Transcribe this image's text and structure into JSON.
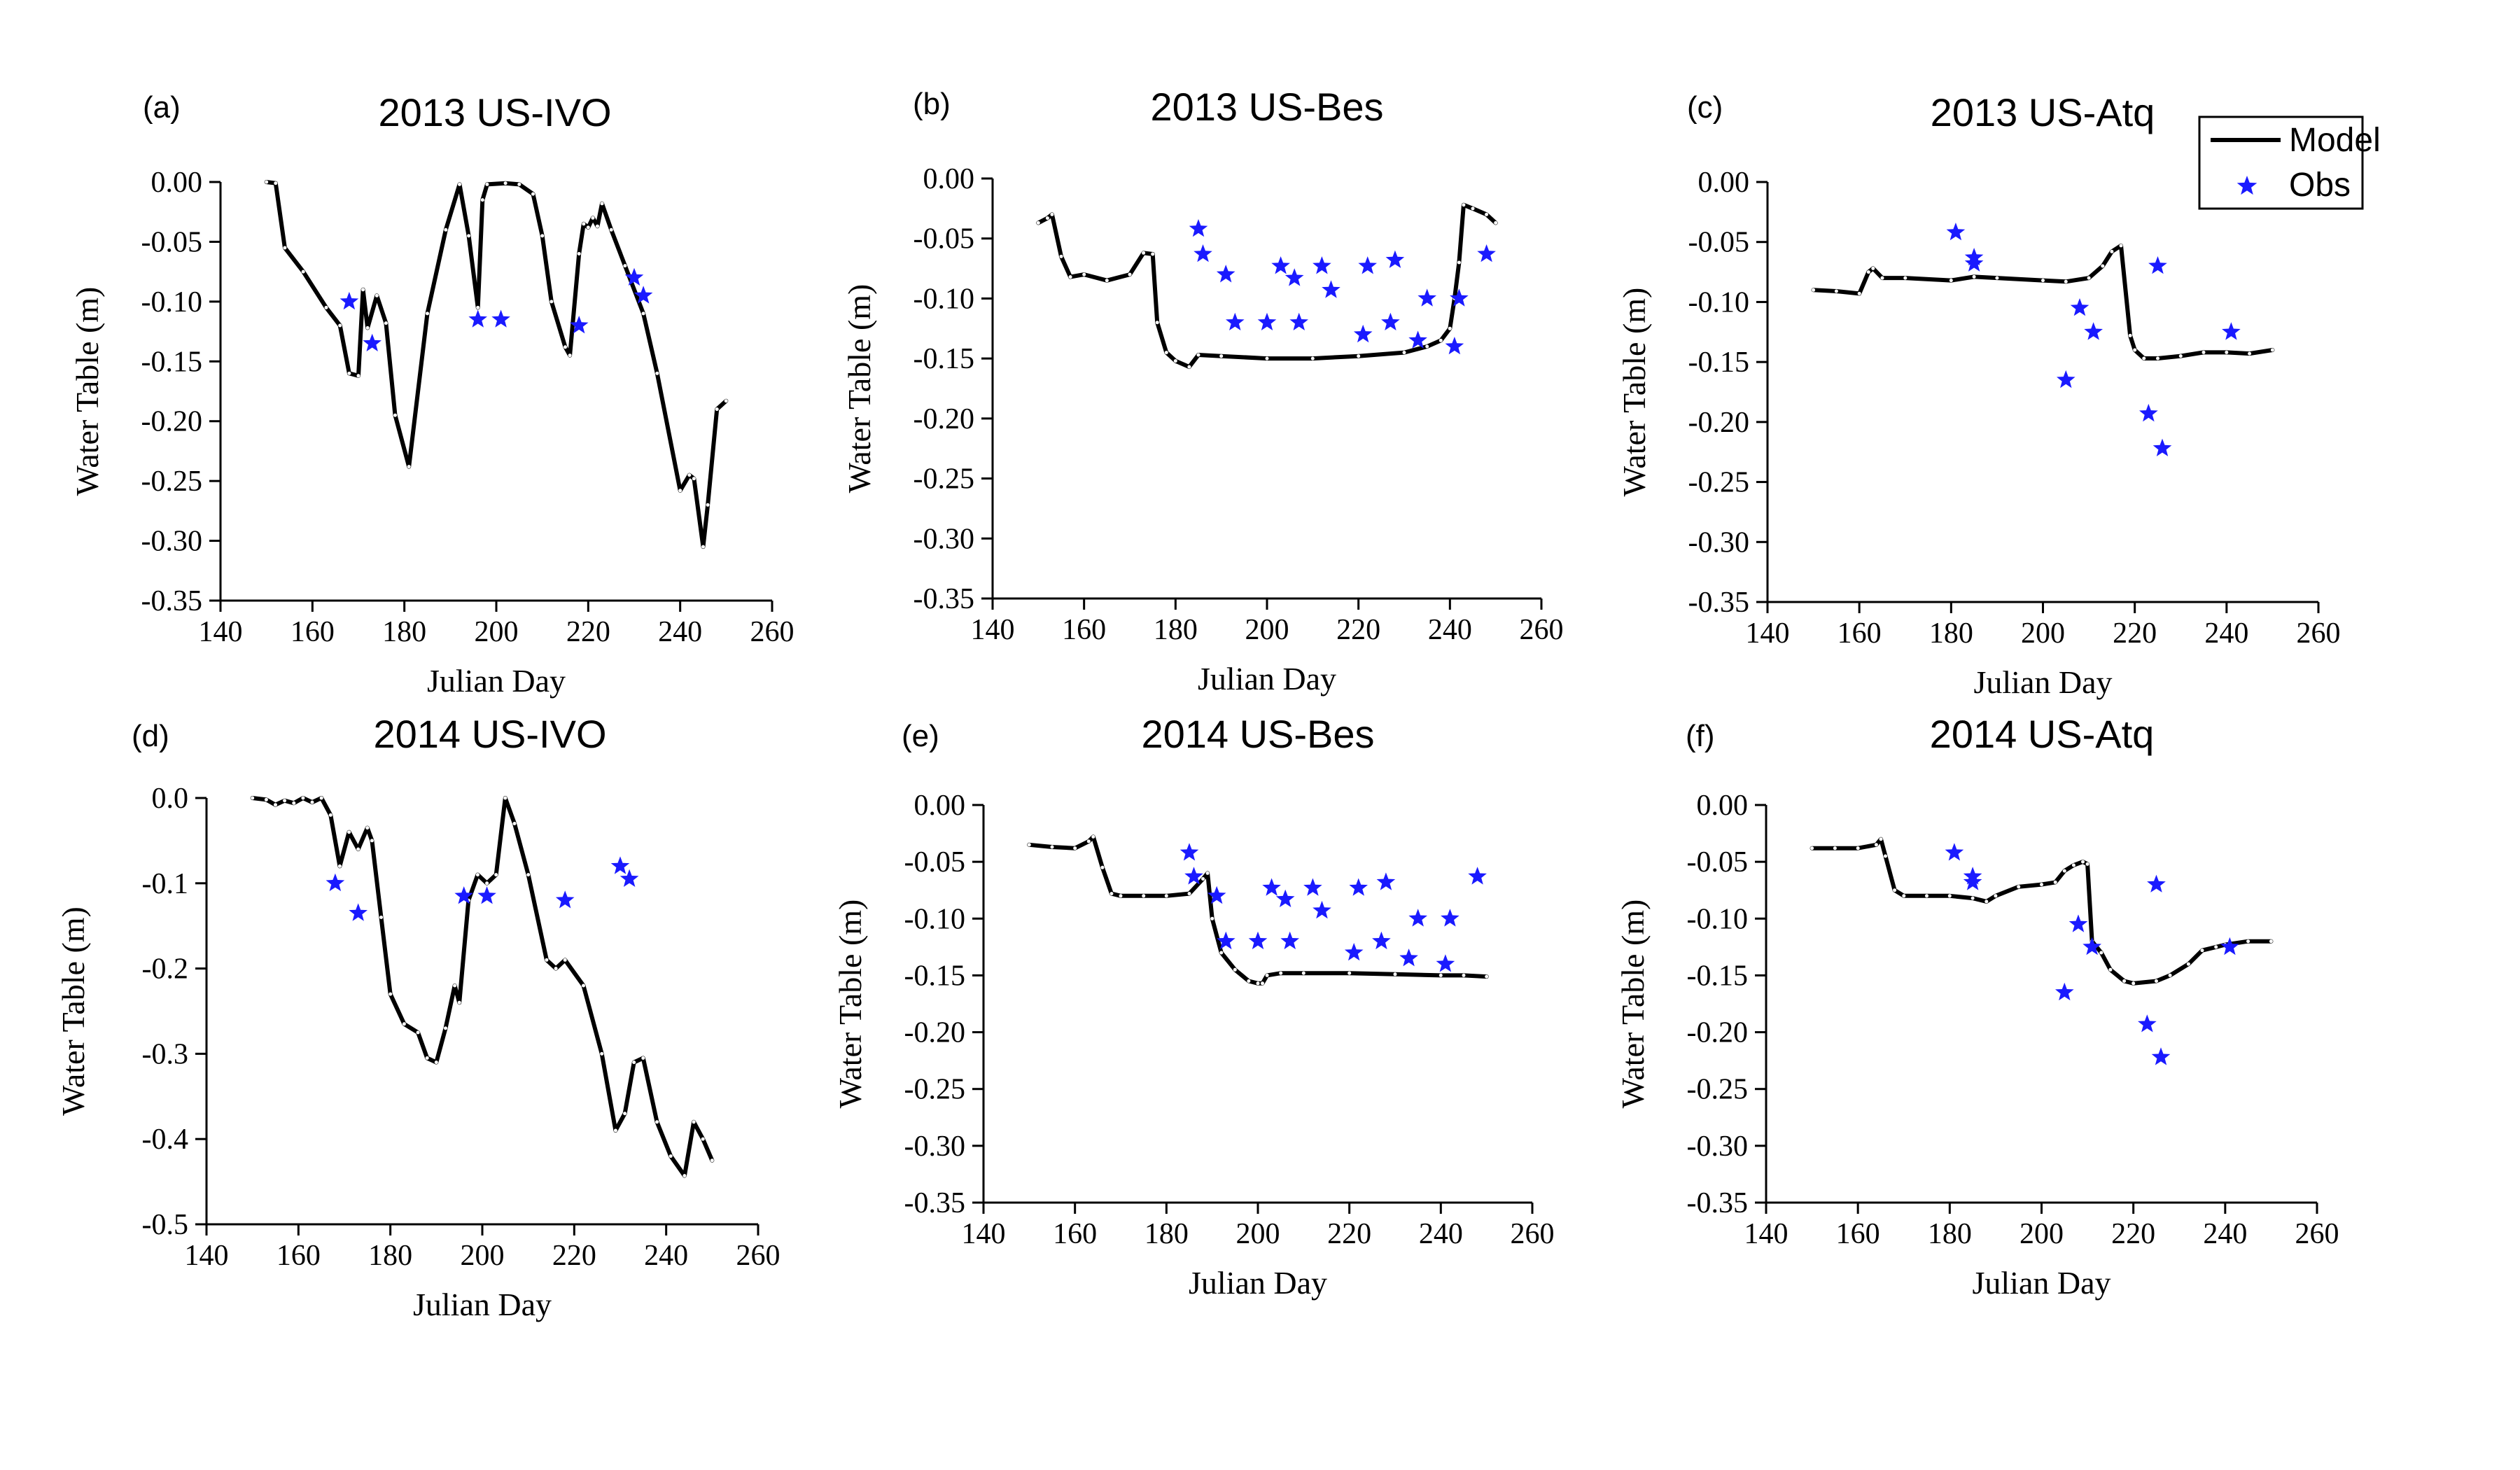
{
  "legend": {
    "model_label": "Model",
    "obs_label": "Obs",
    "model_color": "#000000",
    "obs_color": "#1a1aff"
  },
  "chart_data": [
    {
      "panel": "(a)",
      "title": "2013 US-IVO",
      "type": "line",
      "xlabel": "Julian Day",
      "ylabel": "Water Table (m)",
      "xlim": [
        140,
        260
      ],
      "ylim": [
        -0.35,
        0.0
      ],
      "xticks": [
        140,
        160,
        180,
        200,
        220,
        240,
        260
      ],
      "yticks": [
        0.0,
        -0.05,
        -0.1,
        -0.15,
        -0.2,
        -0.25,
        -0.3,
        -0.35
      ],
      "ytick_labels": [
        "0.00",
        "-0.05",
        "-0.10",
        "-0.15",
        "-0.20",
        "-0.25",
        "-0.30",
        "-0.35"
      ],
      "series": [
        {
          "name": "Model",
          "type": "line",
          "x": [
            150,
            152,
            154,
            158,
            163,
            166,
            168,
            170,
            171,
            172,
            174,
            176,
            178,
            181,
            185,
            189,
            192,
            194,
            196,
            197,
            198,
            202,
            205,
            208,
            210,
            212,
            215,
            216,
            218,
            219,
            220,
            221,
            222,
            223,
            225,
            228,
            232,
            235,
            240,
            242,
            243,
            245,
            246,
            248,
            250
          ],
          "y": [
            0.0,
            -0.001,
            -0.055,
            -0.075,
            -0.105,
            -0.12,
            -0.16,
            -0.162,
            -0.09,
            -0.122,
            -0.095,
            -0.118,
            -0.195,
            -0.238,
            -0.11,
            -0.04,
            -0.002,
            -0.045,
            -0.105,
            -0.015,
            -0.002,
            -0.001,
            -0.002,
            -0.01,
            -0.045,
            -0.1,
            -0.138,
            -0.145,
            -0.06,
            -0.035,
            -0.038,
            -0.03,
            -0.037,
            -0.018,
            -0.04,
            -0.07,
            -0.11,
            -0.16,
            -0.258,
            -0.245,
            -0.248,
            -0.305,
            -0.27,
            -0.19,
            -0.183
          ]
        },
        {
          "name": "Obs",
          "type": "scatter",
          "x": [
            168,
            173,
            196,
            201,
            218,
            230,
            232
          ],
          "y": [
            -0.1,
            -0.135,
            -0.115,
            -0.115,
            -0.12,
            -0.08,
            -0.095
          ]
        }
      ]
    },
    {
      "panel": "(b)",
      "title": "2013 US-Bes",
      "type": "line",
      "xlabel": "Julian Day",
      "ylabel": "Water Table (m)",
      "xlim": [
        140,
        260
      ],
      "ylim": [
        -0.35,
        0.0
      ],
      "xticks": [
        140,
        160,
        180,
        200,
        220,
        240,
        260
      ],
      "yticks": [
        0.0,
        -0.05,
        -0.1,
        -0.15,
        -0.2,
        -0.25,
        -0.3,
        -0.35
      ],
      "ytick_labels": [
        "0.00",
        "-0.05",
        "-0.10",
        "-0.15",
        "-0.20",
        "-0.25",
        "-0.30",
        "-0.35"
      ],
      "series": [
        {
          "name": "Model",
          "type": "line",
          "x": [
            150,
            152,
            153,
            155,
            157,
            160,
            165,
            170,
            173,
            175,
            176,
            178,
            180,
            183,
            185,
            190,
            200,
            210,
            220,
            230,
            235,
            238,
            240,
            241,
            242,
            243,
            245,
            248,
            250
          ],
          "y": [
            -0.037,
            -0.033,
            -0.03,
            -0.065,
            -0.082,
            -0.08,
            -0.085,
            -0.08,
            -0.062,
            -0.063,
            -0.12,
            -0.145,
            -0.152,
            -0.157,
            -0.147,
            -0.148,
            -0.15,
            -0.15,
            -0.148,
            -0.145,
            -0.14,
            -0.135,
            -0.125,
            -0.1,
            -0.07,
            -0.022,
            -0.025,
            -0.03,
            -0.037
          ]
        },
        {
          "name": "Obs",
          "type": "scatter",
          "x": [
            185,
            186,
            191,
            193,
            200,
            203,
            206,
            207,
            212,
            214,
            221,
            222,
            227,
            228,
            233,
            235,
            241,
            242,
            248
          ],
          "y": [
            -0.042,
            -0.063,
            -0.08,
            -0.12,
            -0.12,
            -0.073,
            -0.083,
            -0.12,
            -0.073,
            -0.093,
            -0.13,
            -0.073,
            -0.12,
            -0.068,
            -0.135,
            -0.1,
            -0.14,
            -0.1,
            -0.063
          ]
        }
      ]
    },
    {
      "panel": "(c)",
      "title": "2013 US-Atq",
      "type": "line",
      "xlabel": "Julian Day",
      "ylabel": "Water Table (m)",
      "xlim": [
        140,
        260
      ],
      "ylim": [
        -0.35,
        0.0
      ],
      "xticks": [
        140,
        160,
        180,
        200,
        220,
        240,
        260
      ],
      "yticks": [
        0.0,
        -0.05,
        -0.1,
        -0.15,
        -0.2,
        -0.25,
        -0.3,
        -0.35
      ],
      "ytick_labels": [
        "0.00",
        "-0.05",
        "-0.10",
        "-0.15",
        "-0.20",
        "-0.25",
        "-0.30",
        "-0.35"
      ],
      "series": [
        {
          "name": "Model",
          "type": "line",
          "x": [
            150,
            155,
            160,
            162,
            163,
            165,
            170,
            180,
            185,
            190,
            200,
            205,
            210,
            213,
            215,
            217,
            219,
            220,
            222,
            225,
            230,
            235,
            240,
            245,
            250
          ],
          "y": [
            -0.09,
            -0.091,
            -0.093,
            -0.075,
            -0.072,
            -0.08,
            -0.08,
            -0.082,
            -0.079,
            -0.08,
            -0.082,
            -0.083,
            -0.08,
            -0.07,
            -0.058,
            -0.053,
            -0.128,
            -0.14,
            -0.147,
            -0.147,
            -0.145,
            -0.142,
            -0.142,
            -0.143,
            -0.14
          ]
        },
        {
          "name": "Obs",
          "type": "scatter",
          "x": [
            181,
            185,
            185,
            205,
            208,
            211,
            223,
            225,
            226,
            241
          ],
          "y": [
            -0.042,
            -0.063,
            -0.068,
            -0.165,
            -0.105,
            -0.125,
            -0.193,
            -0.07,
            -0.222,
            -0.125
          ]
        }
      ]
    },
    {
      "panel": "(d)",
      "title": "2014 US-IVO",
      "type": "line",
      "xlabel": "Julian Day",
      "ylabel": "Water Table (m)",
      "xlim": [
        140,
        260
      ],
      "ylim": [
        -0.5,
        0.0
      ],
      "xticks": [
        140,
        160,
        180,
        200,
        220,
        240,
        260
      ],
      "yticks": [
        0.0,
        -0.1,
        -0.2,
        -0.3,
        -0.4,
        -0.5
      ],
      "ytick_labels": [
        "0.0",
        "-0.1",
        "-0.2",
        "-0.3",
        "-0.4",
        "-0.5"
      ],
      "series": [
        {
          "name": "Model",
          "type": "line",
          "x": [
            150,
            153,
            155,
            157,
            159,
            161,
            163,
            165,
            167,
            169,
            171,
            173,
            175,
            176,
            178,
            180,
            183,
            186,
            188,
            190,
            192,
            194,
            195,
            197,
            199,
            201,
            203,
            205,
            207,
            210,
            214,
            216,
            218,
            222,
            226,
            229,
            231,
            233,
            235,
            238,
            241,
            244,
            246,
            248,
            250
          ],
          "y": [
            0.0,
            -0.002,
            -0.008,
            -0.003,
            -0.006,
            0.0,
            -0.005,
            0.0,
            -0.02,
            -0.08,
            -0.04,
            -0.06,
            -0.035,
            -0.05,
            -0.14,
            -0.23,
            -0.265,
            -0.275,
            -0.305,
            -0.31,
            -0.27,
            -0.22,
            -0.24,
            -0.12,
            -0.09,
            -0.1,
            -0.09,
            0.0,
            -0.03,
            -0.09,
            -0.19,
            -0.2,
            -0.19,
            -0.22,
            -0.3,
            -0.39,
            -0.37,
            -0.31,
            -0.305,
            -0.38,
            -0.42,
            -0.443,
            -0.38,
            -0.4,
            -0.425
          ]
        },
        {
          "name": "Obs",
          "type": "scatter",
          "x": [
            168,
            173,
            196,
            201,
            218,
            230,
            232
          ],
          "y": [
            -0.1,
            -0.135,
            -0.115,
            -0.115,
            -0.12,
            -0.08,
            -0.095
          ]
        }
      ]
    },
    {
      "panel": "(e)",
      "title": "2014 US-Bes",
      "type": "line",
      "xlabel": "Julian Day",
      "ylabel": "Water Table (m)",
      "xlim": [
        140,
        260
      ],
      "ylim": [
        -0.35,
        0.0
      ],
      "xticks": [
        140,
        160,
        180,
        200,
        220,
        240,
        260
      ],
      "yticks": [
        0.0,
        -0.05,
        -0.1,
        -0.15,
        -0.2,
        -0.25,
        -0.3,
        -0.35
      ],
      "ytick_labels": [
        "0.00",
        "-0.05",
        "-0.10",
        "-0.15",
        "-0.20",
        "-0.25",
        "-0.30",
        "-0.35"
      ],
      "series": [
        {
          "name": "Model",
          "type": "line",
          "x": [
            150,
            155,
            160,
            163,
            164,
            166,
            168,
            170,
            175,
            180,
            185,
            188,
            189,
            190,
            192,
            195,
            198,
            200,
            201,
            202,
            205,
            210,
            220,
            230,
            240,
            245,
            250
          ],
          "y": [
            -0.035,
            -0.037,
            -0.038,
            -0.032,
            -0.028,
            -0.055,
            -0.078,
            -0.08,
            -0.08,
            -0.08,
            -0.078,
            -0.065,
            -0.06,
            -0.1,
            -0.13,
            -0.145,
            -0.155,
            -0.157,
            -0.157,
            -0.15,
            -0.148,
            -0.148,
            -0.148,
            -0.149,
            -0.15,
            -0.15,
            -0.151
          ]
        },
        {
          "name": "Obs",
          "type": "scatter",
          "x": [
            185,
            186,
            191,
            193,
            200,
            203,
            206,
            207,
            212,
            214,
            221,
            222,
            227,
            228,
            233,
            235,
            241,
            242,
            248
          ],
          "y": [
            -0.042,
            -0.063,
            -0.08,
            -0.12,
            -0.12,
            -0.073,
            -0.083,
            -0.12,
            -0.073,
            -0.093,
            -0.13,
            -0.073,
            -0.12,
            -0.068,
            -0.135,
            -0.1,
            -0.14,
            -0.1,
            -0.063
          ]
        }
      ]
    },
    {
      "panel": "(f)",
      "title": "2014 US-Atq",
      "type": "line",
      "xlabel": "Julian Day",
      "ylabel": "Water Table (m)",
      "xlim": [
        140,
        260
      ],
      "ylim": [
        -0.35,
        0.0
      ],
      "xticks": [
        140,
        160,
        180,
        200,
        220,
        240,
        260
      ],
      "yticks": [
        0.0,
        -0.05,
        -0.1,
        -0.15,
        -0.2,
        -0.25,
        -0.3,
        -0.35
      ],
      "ytick_labels": [
        "0.00",
        "-0.05",
        "-0.10",
        "-0.15",
        "-0.20",
        "-0.25",
        "-0.30",
        "-0.35"
      ],
      "series": [
        {
          "name": "Model",
          "type": "line",
          "x": [
            150,
            155,
            160,
            164,
            165,
            166,
            168,
            170,
            175,
            180,
            185,
            188,
            190,
            195,
            200,
            203,
            205,
            207,
            209,
            210,
            211,
            213,
            215,
            218,
            220,
            225,
            228,
            232,
            235,
            238,
            240,
            245,
            250
          ],
          "y": [
            -0.038,
            -0.038,
            -0.038,
            -0.035,
            -0.03,
            -0.045,
            -0.075,
            -0.08,
            -0.08,
            -0.08,
            -0.082,
            -0.085,
            -0.08,
            -0.072,
            -0.07,
            -0.068,
            -0.058,
            -0.053,
            -0.05,
            -0.052,
            -0.12,
            -0.13,
            -0.145,
            -0.155,
            -0.157,
            -0.155,
            -0.15,
            -0.14,
            -0.128,
            -0.125,
            -0.123,
            -0.12,
            -0.12
          ]
        },
        {
          "name": "Obs",
          "type": "scatter",
          "x": [
            181,
            185,
            185,
            205,
            208,
            211,
            223,
            225,
            226,
            241
          ],
          "y": [
            -0.042,
            -0.063,
            -0.068,
            -0.165,
            -0.105,
            -0.125,
            -0.193,
            -0.07,
            -0.222,
            -0.125
          ]
        }
      ]
    }
  ]
}
